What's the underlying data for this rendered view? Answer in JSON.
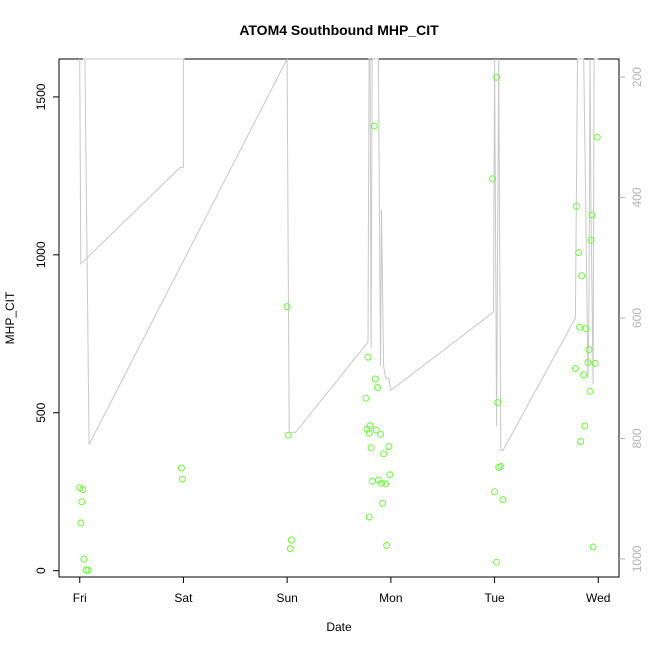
{
  "chart_data": {
    "type": "scatter",
    "title": "ATOM4 Southbound MHP_CIT",
    "xlabel": "Date",
    "ylabel": "MHP_CIT",
    "x_ticks": [
      "Fri",
      "Sat",
      "Sun",
      "Mon",
      "Tue",
      "Wed"
    ],
    "xlim": [
      -0.2,
      5.2
    ],
    "ylim": [
      -20,
      1620
    ],
    "y_ticks": [
      0,
      500,
      1000,
      1500
    ],
    "y2lim": [
      1030,
      170
    ],
    "y2_ticks": [
      200,
      400,
      600,
      800,
      1000
    ],
    "grid": false,
    "colors": {
      "points": "#66ff33",
      "line": "#c8c8c8",
      "axis": "#000000",
      "right_axis": "#b4b4b4"
    },
    "points": [
      {
        "x": 0.0,
        "y": 262
      },
      {
        "x": 0.02,
        "y": 218
      },
      {
        "x": 0.03,
        "y": 257
      },
      {
        "x": 0.01,
        "y": 151
      },
      {
        "x": 0.04,
        "y": 37
      },
      {
        "x": 0.06,
        "y": 2
      },
      {
        "x": 0.08,
        "y": 2
      },
      {
        "x": 0.98,
        "y": 325
      },
      {
        "x": 0.99,
        "y": 290
      },
      {
        "x": 2.0,
        "y": 836
      },
      {
        "x": 2.01,
        "y": 429
      },
      {
        "x": 2.04,
        "y": 97
      },
      {
        "x": 2.03,
        "y": 70
      },
      {
        "x": 2.76,
        "y": 546
      },
      {
        "x": 2.78,
        "y": 676
      },
      {
        "x": 2.77,
        "y": 448
      },
      {
        "x": 2.79,
        "y": 435
      },
      {
        "x": 2.8,
        "y": 459
      },
      {
        "x": 2.81,
        "y": 389
      },
      {
        "x": 2.79,
        "y": 170
      },
      {
        "x": 2.82,
        "y": 283
      },
      {
        "x": 2.84,
        "y": 1408
      },
      {
        "x": 2.85,
        "y": 607
      },
      {
        "x": 2.86,
        "y": 445
      },
      {
        "x": 2.87,
        "y": 580
      },
      {
        "x": 2.88,
        "y": 287
      },
      {
        "x": 2.9,
        "y": 432
      },
      {
        "x": 2.91,
        "y": 277
      },
      {
        "x": 2.93,
        "y": 370
      },
      {
        "x": 2.92,
        "y": 213
      },
      {
        "x": 2.95,
        "y": 275
      },
      {
        "x": 2.96,
        "y": 80
      },
      {
        "x": 2.98,
        "y": 393
      },
      {
        "x": 2.99,
        "y": 304
      },
      {
        "x": 3.98,
        "y": 1241
      },
      {
        "x": 4.02,
        "y": 1562
      },
      {
        "x": 4.03,
        "y": 532
      },
      {
        "x": 4.0,
        "y": 250
      },
      {
        "x": 4.04,
        "y": 327
      },
      {
        "x": 4.06,
        "y": 330
      },
      {
        "x": 4.08,
        "y": 225
      },
      {
        "x": 4.02,
        "y": 27
      },
      {
        "x": 4.79,
        "y": 1154
      },
      {
        "x": 4.81,
        "y": 1007
      },
      {
        "x": 4.84,
        "y": 934
      },
      {
        "x": 4.82,
        "y": 771
      },
      {
        "x": 4.78,
        "y": 640
      },
      {
        "x": 4.86,
        "y": 620
      },
      {
        "x": 4.88,
        "y": 766
      },
      {
        "x": 4.9,
        "y": 659
      },
      {
        "x": 4.91,
        "y": 700
      },
      {
        "x": 4.93,
        "y": 1046
      },
      {
        "x": 4.94,
        "y": 1126
      },
      {
        "x": 4.97,
        "y": 656
      },
      {
        "x": 4.99,
        "y": 1372
      },
      {
        "x": 4.92,
        "y": 568
      },
      {
        "x": 4.87,
        "y": 458
      },
      {
        "x": 4.83,
        "y": 409
      },
      {
        "x": 4.95,
        "y": 75
      }
    ],
    "line_series": {
      "axis": "right",
      "x": [
        0.0,
        0.01,
        0.97,
        1.0,
        1.0,
        1.01,
        0.03,
        0.05,
        0.09,
        2.0,
        2.01,
        2.02,
        2.04,
        2.05,
        2.06,
        2.08,
        2.78,
        2.79,
        2.8,
        2.81,
        2.82,
        2.83,
        2.84,
        2.86,
        2.87,
        2.88,
        2.9,
        2.91,
        2.93,
        2.95,
        2.96,
        2.97,
        2.98,
        3.0,
        3.99,
        4.0,
        4.02,
        4.04,
        4.06,
        4.08,
        4.78,
        4.8,
        4.82,
        4.84,
        4.86,
        4.88,
        4.9,
        4.91,
        4.92,
        4.93,
        4.95,
        4.96,
        4.97,
        4.98,
        5.0
      ],
      "y": [
        170,
        510,
        350,
        350,
        170,
        170,
        170,
        170,
        810,
        170,
        500,
        790,
        790,
        790,
        790,
        790,
        640,
        170,
        170,
        650,
        170,
        170,
        170,
        170,
        170,
        170,
        680,
        420,
        680,
        700,
        700,
        700,
        700,
        720,
        590,
        170,
        780,
        170,
        820,
        820,
        600,
        170,
        170,
        170,
        170,
        420,
        700,
        600,
        170,
        420,
        710,
        170,
        170,
        170,
        170
      ]
    }
  }
}
